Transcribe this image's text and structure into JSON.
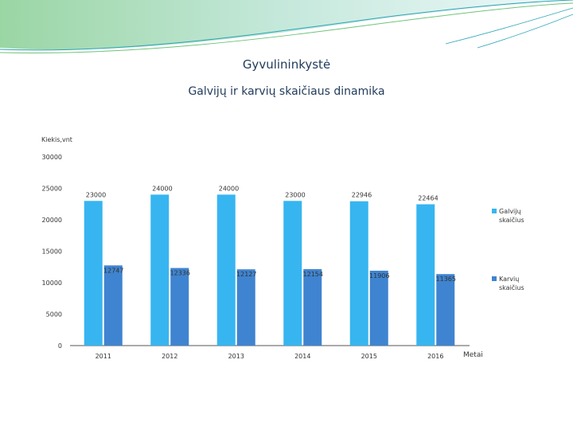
{
  "slide": {
    "title": "Gyvulininkystė",
    "subtitle": "Galvijų ir karvių skaičiaus dinamika"
  },
  "chart_data": {
    "type": "bar",
    "ylabel": "Kiekis,vnt",
    "xlabel": "Metai",
    "categories": [
      "2011",
      "2012",
      "2013",
      "2014",
      "2015",
      "2016"
    ],
    "ylim": [
      0,
      30000
    ],
    "yticks": [
      0,
      5000,
      10000,
      15000,
      20000,
      25000,
      30000
    ],
    "grid": false,
    "legend_position": "right",
    "series": [
      {
        "name": "Galvijų skaičius",
        "values": [
          23000,
          24000,
          24000,
          23000,
          22946,
          22464
        ],
        "labels": [
          "23000",
          "24000",
          "24000",
          "23000",
          "22946",
          "22464"
        ],
        "color": "#37b5f0"
      },
      {
        "name": "Karvių skaičius",
        "values": [
          12747,
          12336,
          12127,
          12154,
          11906,
          11365
        ],
        "labels": [
          "12747",
          "12336",
          "12127",
          "12154",
          "11906",
          "11365"
        ],
        "color": "#3f84d0"
      }
    ]
  },
  "colors": {
    "title": "#1f3a5a",
    "axis": "#444444",
    "deco_green": "#6fc37a",
    "deco_teal": "#2aa5b5"
  }
}
